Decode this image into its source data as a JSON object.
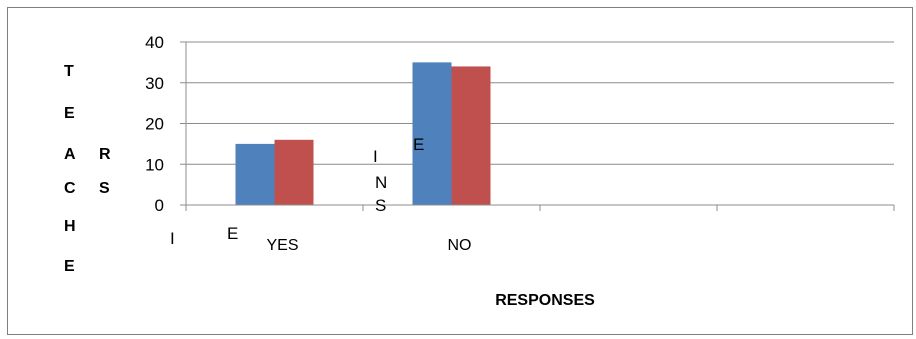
{
  "chart_data": {
    "type": "bar",
    "categories": [
      "YES",
      "NO"
    ],
    "series": [
      {
        "values": [
          15,
          35
        ],
        "color": "#4f81bd"
      },
      {
        "values": [
          16,
          34
        ],
        "color": "#c0504d"
      }
    ],
    "title": "",
    "xlabel": "RESPONSES",
    "ylabel_lines": [
      "T",
      "E",
      "A",
      "C",
      "H",
      "E"
    ],
    "ylabel_extra": [
      "R",
      "S"
    ],
    "ylim": [
      0,
      40
    ],
    "yticks": [
      0,
      10,
      20,
      30,
      40
    ],
    "x_slots": 4,
    "grid": true,
    "legend": "none",
    "stray_text": [
      "I",
      "E",
      "I",
      "N",
      "S",
      "E"
    ]
  }
}
